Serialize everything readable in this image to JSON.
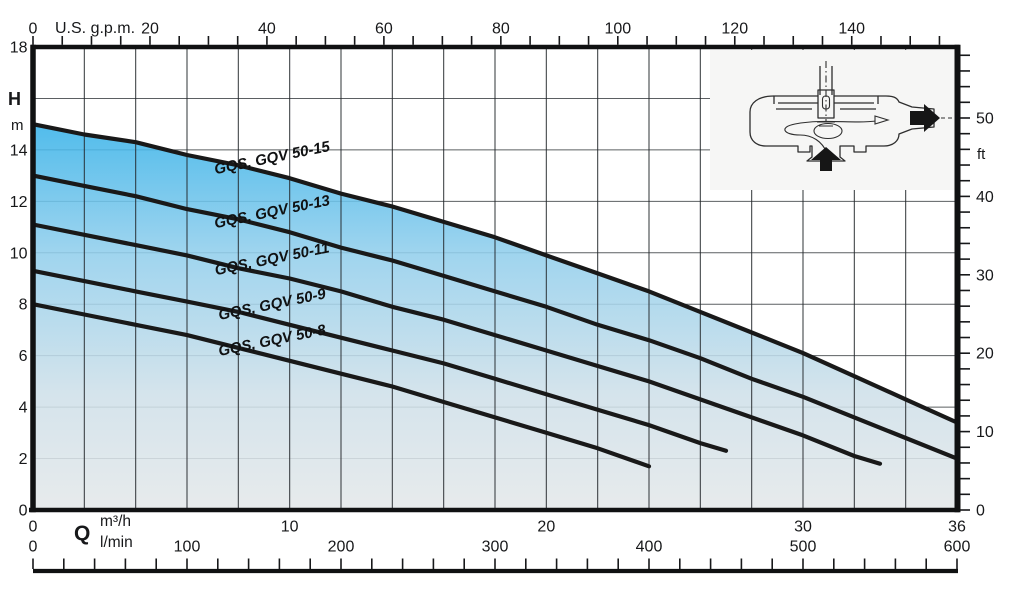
{
  "chart_data": {
    "type": "line",
    "x_axis_top": {
      "label": "U.S. g.p.m.",
      "ticks": [
        0,
        20,
        40,
        60,
        80,
        100,
        120,
        140
      ],
      "range_gpm": [
        0,
        158
      ],
      "minor_tick_step": 5
    },
    "y_axis_left": {
      "label": "H",
      "unit": "m",
      "ticks": [
        18,
        14,
        12,
        10,
        8,
        6,
        4,
        2,
        0
      ],
      "range_m": [
        0,
        18
      ],
      "grid_step_m": 2
    },
    "y_axis_right": {
      "label": "ft",
      "ticks": [
        50,
        40,
        30,
        20,
        10,
        0
      ],
      "range_ft": [
        0,
        59
      ],
      "minor_tick_step_ft": 2
    },
    "x_axis_bottom": {
      "label": "Q",
      "unit_primary": "m³/h",
      "unit_secondary": "l/min",
      "ticks_m3h": [
        0,
        10,
        20,
        30,
        36
      ],
      "ticks_lmin": [
        0,
        100,
        200,
        300,
        400,
        500,
        600
      ],
      "range_m3h": [
        0,
        36
      ],
      "range_lmin": [
        0,
        600
      ],
      "minor_tick_step_lmin": 20,
      "grid_step_m3h": 2
    },
    "series": [
      {
        "name": "GQS, GQV 50-15",
        "points": [
          [
            0,
            15
          ],
          [
            2,
            14.6
          ],
          [
            4,
            14.3
          ],
          [
            6,
            13.8
          ],
          [
            8,
            13.4
          ],
          [
            10,
            12.9
          ],
          [
            12,
            12.3
          ],
          [
            14,
            11.8
          ],
          [
            16,
            11.2
          ],
          [
            18,
            10.6
          ],
          [
            20,
            9.9
          ],
          [
            22,
            9.2
          ],
          [
            24,
            8.5
          ],
          [
            26,
            7.7
          ],
          [
            28,
            6.9
          ],
          [
            30,
            6.1
          ],
          [
            32,
            5.2
          ],
          [
            34,
            4.3
          ],
          [
            36,
            3.4
          ]
        ]
      },
      {
        "name": "GQS, GQV 50-13",
        "points": [
          [
            0,
            13
          ],
          [
            2,
            12.6
          ],
          [
            4,
            12.2
          ],
          [
            6,
            11.7
          ],
          [
            8,
            11.3
          ],
          [
            10,
            10.8
          ],
          [
            12,
            10.2
          ],
          [
            14,
            9.7
          ],
          [
            16,
            9.1
          ],
          [
            18,
            8.5
          ],
          [
            20,
            7.9
          ],
          [
            22,
            7.2
          ],
          [
            24,
            6.6
          ],
          [
            26,
            5.9
          ],
          [
            28,
            5.1
          ],
          [
            30,
            4.4
          ],
          [
            32,
            3.6
          ],
          [
            34,
            2.8
          ],
          [
            36,
            2.0
          ]
        ]
      },
      {
        "name": "GQS, GQV 50-11",
        "points": [
          [
            0,
            11.1
          ],
          [
            2,
            10.7
          ],
          [
            4,
            10.3
          ],
          [
            6,
            9.9
          ],
          [
            8,
            9.4
          ],
          [
            10,
            9.0
          ],
          [
            12,
            8.5
          ],
          [
            14,
            7.9
          ],
          [
            16,
            7.4
          ],
          [
            18,
            6.8
          ],
          [
            20,
            6.2
          ],
          [
            22,
            5.6
          ],
          [
            24,
            5.0
          ],
          [
            26,
            4.3
          ],
          [
            28,
            3.6
          ],
          [
            30,
            2.9
          ],
          [
            32,
            2.1
          ],
          [
            33,
            1.8
          ]
        ]
      },
      {
        "name": "GQS, GQV 50-9",
        "points": [
          [
            0,
            9.3
          ],
          [
            2,
            8.9
          ],
          [
            4,
            8.5
          ],
          [
            6,
            8.1
          ],
          [
            8,
            7.7
          ],
          [
            10,
            7.2
          ],
          [
            12,
            6.7
          ],
          [
            14,
            6.2
          ],
          [
            16,
            5.7
          ],
          [
            18,
            5.1
          ],
          [
            20,
            4.5
          ],
          [
            22,
            3.9
          ],
          [
            24,
            3.3
          ],
          [
            26,
            2.6
          ],
          [
            27,
            2.3
          ]
        ]
      },
      {
        "name": "GQS, GQV 50-8",
        "points": [
          [
            0,
            8
          ],
          [
            2,
            7.6
          ],
          [
            4,
            7.2
          ],
          [
            6,
            6.8
          ],
          [
            8,
            6.3
          ],
          [
            10,
            5.8
          ],
          [
            12,
            5.3
          ],
          [
            14,
            4.8
          ],
          [
            16,
            4.2
          ],
          [
            18,
            3.6
          ],
          [
            20,
            3.0
          ],
          [
            22,
            2.4
          ],
          [
            24,
            1.7
          ]
        ]
      }
    ],
    "legend_position": "labels-on-curves",
    "grid": true,
    "colors": {
      "fill_top": "#1fa9e6",
      "fill_upper": "#3ab3e9",
      "fill_mid": "#93cfec",
      "fill_lower": "#cfe0e9",
      "fill_bottom": "#e4e8ea",
      "curve": "#191919",
      "inset_bg": "#f6f6f5"
    },
    "inset": {
      "icons": [
        "pump-cross-section-sketch",
        "inlet-flow-arrow",
        "outlet-flow-arrow"
      ]
    }
  }
}
